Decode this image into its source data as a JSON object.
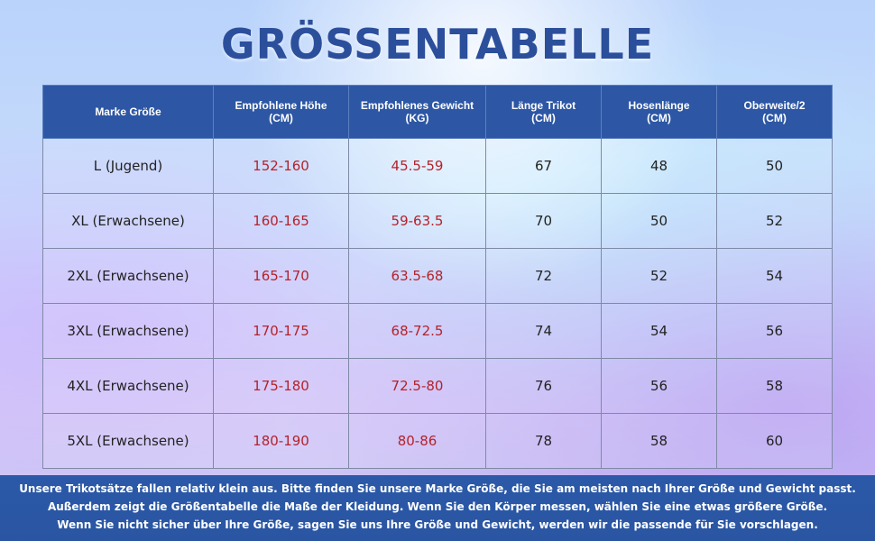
{
  "title": "GRÖSSENTABELLE",
  "table": {
    "headers": [
      {
        "line1": "Marke Größe",
        "line2": ""
      },
      {
        "line1": "Empfohlene Höhe",
        "line2": "(CM)"
      },
      {
        "line1": "Empfohlenes Gewicht",
        "line2": "(KG)"
      },
      {
        "line1": "Länge Trikot",
        "line2": "(CM)"
      },
      {
        "line1": "Hosenlänge",
        "line2": "(CM)"
      },
      {
        "line1": "Oberweite/2",
        "line2": "(CM)"
      }
    ],
    "rows": [
      [
        "L (Jugend)",
        "152-160",
        "45.5-59",
        "67",
        "48",
        "50"
      ],
      [
        "XL (Erwachsene)",
        "160-165",
        "59-63.5",
        "70",
        "50",
        "52"
      ],
      [
        "2XL (Erwachsene)",
        "165-170",
        "63.5-68",
        "72",
        "52",
        "54"
      ],
      [
        "3XL (Erwachsene)",
        "170-175",
        "68-72.5",
        "74",
        "54",
        "56"
      ],
      [
        "4XL (Erwachsene)",
        "175-180",
        "72.5-80",
        "76",
        "56",
        "58"
      ],
      [
        "5XL (Erwachsene)",
        "180-190",
        "80-86",
        "78",
        "58",
        "60"
      ]
    ]
  },
  "notes": [
    "Unsere Trikotsätze fallen relativ klein aus. Bitte finden Sie unsere Marke Größe, die Sie am meisten nach Ihrer Größe und Gewicht passt.",
    "Außerdem zeigt die Größentabelle die Maße der Kleidung. Wenn Sie den Körper messen, wählen Sie eine etwas größere Größe.",
    "Wenn Sie nicht sicher über Ihre Größe, sagen Sie uns Ihre Größe und Gewicht, werden wir die passende für Sie vorschlagen."
  ],
  "colors": {
    "header_bg": "#2d57a4",
    "title": "#2c4f9c",
    "range_text": "#b5222b",
    "footer_bg": "#2b59a8"
  }
}
